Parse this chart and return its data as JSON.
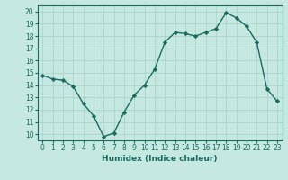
{
  "x": [
    0,
    1,
    2,
    3,
    4,
    5,
    6,
    7,
    8,
    9,
    10,
    11,
    12,
    13,
    14,
    15,
    16,
    17,
    18,
    19,
    20,
    21,
    22,
    23
  ],
  "y": [
    14.8,
    14.5,
    14.4,
    13.9,
    12.5,
    11.5,
    9.8,
    10.1,
    11.8,
    13.2,
    14.0,
    15.3,
    17.5,
    18.3,
    18.2,
    18.0,
    18.3,
    18.6,
    19.9,
    19.5,
    18.8,
    17.5,
    13.7,
    12.7
  ],
  "line_color": "#1a6b5e",
  "marker": "D",
  "marker_size": 2.2,
  "bg_color": "#c5e8e0",
  "grid_color": "#a8cfc8",
  "xlabel": "Humidex (Indice chaleur)",
  "xlim": [
    -0.5,
    23.5
  ],
  "ylim": [
    9.5,
    20.5
  ],
  "yticks": [
    10,
    11,
    12,
    13,
    14,
    15,
    16,
    17,
    18,
    19,
    20
  ],
  "xticks": [
    0,
    1,
    2,
    3,
    4,
    5,
    6,
    7,
    8,
    9,
    10,
    11,
    12,
    13,
    14,
    15,
    16,
    17,
    18,
    19,
    20,
    21,
    22,
    23
  ],
  "tick_color": "#1a6b5e",
  "label_fontsize": 6.5,
  "tick_fontsize": 5.5,
  "linewidth": 1.0
}
